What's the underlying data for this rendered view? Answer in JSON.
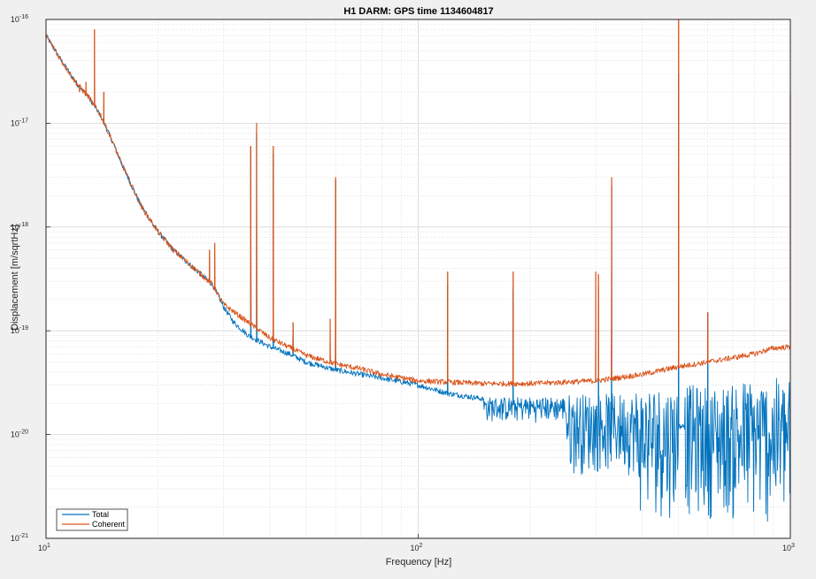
{
  "chart_data": {
    "type": "line",
    "title": "H1 DARM: GPS time 1134604817",
    "xlabel": "Frequency [Hz]",
    "ylabel": "Displacement [m/sqrtHz]",
    "xscale": "log",
    "yscale": "log",
    "xlim": [
      10,
      1000
    ],
    "ylim": [
      1e-21,
      1e-16
    ],
    "grid": true,
    "legend_position": "bottom-left",
    "x_ticks": [
      {
        "value": 10,
        "base": "10",
        "exp": "1"
      },
      {
        "value": 100,
        "base": "10",
        "exp": "2"
      },
      {
        "value": 1000,
        "base": "10",
        "exp": "3"
      }
    ],
    "y_ticks": [
      {
        "value": 1e-21,
        "base": "10",
        "exp": "-21"
      },
      {
        "value": 1e-20,
        "base": "10",
        "exp": "-20"
      },
      {
        "value": 1e-19,
        "base": "10",
        "exp": "-19"
      },
      {
        "value": 1e-18,
        "base": "10",
        "exp": "-18"
      },
      {
        "value": 1e-17,
        "base": "10",
        "exp": "-17"
      },
      {
        "value": 1e-16,
        "base": "10",
        "exp": "-16"
      }
    ],
    "series": [
      {
        "name": "Total",
        "color": "#0072bd",
        "baseline": [
          [
            10,
            7e-17
          ],
          [
            11,
            4e-17
          ],
          [
            12,
            2.5e-17
          ],
          [
            13,
            1.8e-17
          ],
          [
            14,
            1.2e-17
          ],
          [
            15,
            7e-18
          ],
          [
            16,
            4e-18
          ],
          [
            17,
            2.5e-18
          ],
          [
            18,
            1.6e-18
          ],
          [
            20,
            9e-19
          ],
          [
            22,
            6e-19
          ],
          [
            25,
            4e-19
          ],
          [
            28,
            2.8e-19
          ],
          [
            30,
            1.7e-19
          ],
          [
            32,
            1.2e-19
          ],
          [
            35,
            9e-20
          ],
          [
            40,
            7e-20
          ],
          [
            45,
            6e-20
          ],
          [
            50,
            5e-20
          ],
          [
            60,
            4.2e-20
          ],
          [
            70,
            3.8e-20
          ],
          [
            80,
            3.5e-20
          ],
          [
            100,
            3e-20
          ],
          [
            120,
            2.5e-20
          ],
          [
            150,
            2.2e-20
          ],
          [
            200,
            1.8e-20
          ],
          [
            250,
            1.6e-20
          ],
          [
            300,
            1.5e-20
          ],
          [
            400,
            1.4e-20
          ],
          [
            500,
            1.2e-20
          ],
          [
            600,
            1.2e-20
          ],
          [
            700,
            1.2e-20
          ],
          [
            800,
            1.2e-20
          ],
          [
            1000,
            1.2e-20
          ]
        ],
        "noise_bands": [
          {
            "from": 150,
            "to": 250,
            "low": 1.3e-20,
            "high": 2.3e-20
          },
          {
            "from": 250,
            "to": 380,
            "low": 4e-21,
            "high": 2.5e-20
          },
          {
            "from": 380,
            "to": 500,
            "low": 1.5e-21,
            "high": 3e-20
          },
          {
            "from": 520,
            "to": 700,
            "low": 1.5e-21,
            "high": 3e-20
          },
          {
            "from": 700,
            "to": 1000,
            "low": 1.2e-21,
            "high": 3.5e-20
          }
        ],
        "peaks": [
          [
            35.5,
            6e-18
          ],
          [
            36.8,
            8e-18
          ],
          [
            40.8,
            5e-18
          ],
          [
            46.1,
            1.2e-19
          ],
          [
            60,
            2.8e-18
          ],
          [
            120,
            2.8e-19
          ],
          [
            180,
            2.5e-19
          ],
          [
            305,
            2.7e-19
          ],
          [
            331,
            2.5e-18
          ],
          [
            501,
            3e-17
          ],
          [
            600,
            1.5e-19
          ]
        ]
      },
      {
        "name": "Coherent",
        "color": "#d95319",
        "baseline": [
          [
            10,
            7e-17
          ],
          [
            11,
            4e-17
          ],
          [
            12,
            2.5e-17
          ],
          [
            13,
            1.8e-17
          ],
          [
            14,
            1.2e-17
          ],
          [
            15,
            7e-18
          ],
          [
            16,
            4e-18
          ],
          [
            17,
            2.5e-18
          ],
          [
            18,
            1.6e-18
          ],
          [
            20,
            9e-19
          ],
          [
            22,
            6e-19
          ],
          [
            25,
            4e-19
          ],
          [
            28,
            2.8e-19
          ],
          [
            30,
            1.8e-19
          ],
          [
            35,
            1.2e-19
          ],
          [
            40,
            8.5e-20
          ],
          [
            50,
            5.8e-20
          ],
          [
            60,
            4.8e-20
          ],
          [
            70,
            4.3e-20
          ],
          [
            80,
            3.8e-20
          ],
          [
            100,
            3.3e-20
          ],
          [
            150,
            3.1e-20
          ],
          [
            200,
            3.1e-20
          ],
          [
            300,
            3.3e-20
          ],
          [
            400,
            3.8e-20
          ],
          [
            500,
            4.5e-20
          ],
          [
            600,
            5e-20
          ],
          [
            700,
            5.5e-20
          ],
          [
            800,
            6e-20
          ],
          [
            900,
            6.8e-20
          ],
          [
            1000,
            7e-20
          ]
        ],
        "peaks": [
          [
            12.3,
            2e-17
          ],
          [
            12.8,
            2.5e-17
          ],
          [
            13.5,
            8e-17
          ],
          [
            14.3,
            2e-17
          ],
          [
            27.5,
            6e-19
          ],
          [
            28.4,
            7e-19
          ],
          [
            35.5,
            6e-18
          ],
          [
            36.8,
            1e-17
          ],
          [
            40.8,
            6e-18
          ],
          [
            46.1,
            1.2e-19
          ],
          [
            58,
            1.3e-19
          ],
          [
            60,
            3e-18
          ],
          [
            120,
            3.7e-19
          ],
          [
            180,
            3.7e-19
          ],
          [
            300,
            3.7e-19
          ],
          [
            305,
            3.5e-19
          ],
          [
            331,
            3e-18
          ],
          [
            501,
            1e-16
          ],
          [
            600,
            1.5e-19
          ],
          [
            1000,
            2e-17
          ]
        ]
      }
    ]
  }
}
